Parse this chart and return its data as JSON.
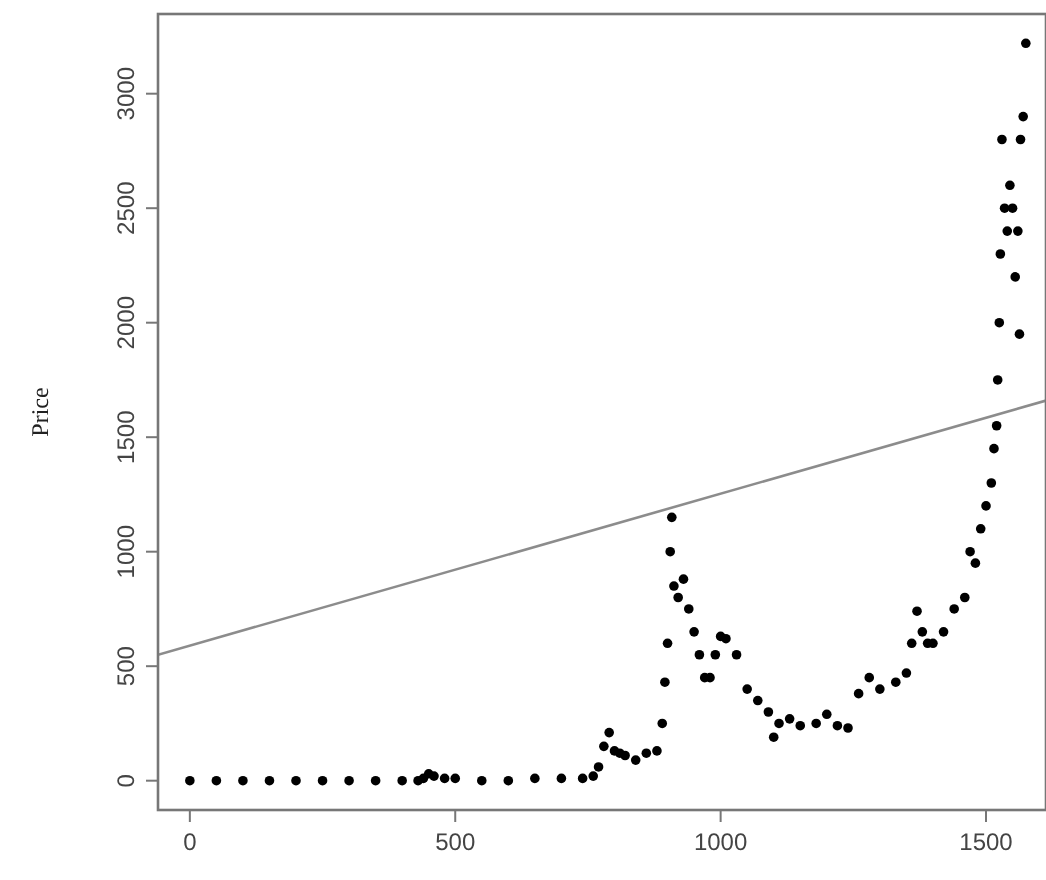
{
  "chart_data": {
    "type": "scatter",
    "ylabel": "Price",
    "xlim": [
      -60,
      1613
    ],
    "ylim": [
      -128,
      3348
    ],
    "xticks": [
      0,
      500,
      1000,
      1500
    ],
    "yticks": [
      0,
      500,
      1000,
      1500,
      2000,
      2500,
      3000
    ],
    "grid": false,
    "series": [
      {
        "color": "#000000",
        "marker": "circle",
        "x": [
          0,
          50,
          100,
          150,
          200,
          250,
          300,
          350,
          400,
          430,
          440,
          450,
          460,
          480,
          500,
          550,
          600,
          650,
          700,
          740,
          760,
          770,
          780,
          790,
          800,
          810,
          820,
          840,
          860,
          880,
          890,
          895,
          900,
          905,
          908,
          912,
          920,
          930,
          940,
          950,
          960,
          970,
          980,
          990,
          1000,
          1010,
          1030,
          1050,
          1070,
          1090,
          1100,
          1110,
          1130,
          1150,
          1180,
          1200,
          1220,
          1240,
          1260,
          1280,
          1300,
          1330,
          1350,
          1360,
          1370,
          1380,
          1390,
          1400,
          1420,
          1440,
          1460,
          1470,
          1480,
          1490,
          1500,
          1510,
          1515,
          1520,
          1522,
          1525,
          1527,
          1530,
          1535,
          1540,
          1545,
          1550,
          1555,
          1560,
          1563,
          1565,
          1570,
          1575
        ],
        "values": [
          0,
          0,
          0,
          0,
          0,
          0,
          0,
          0,
          0,
          0,
          10,
          30,
          20,
          10,
          10,
          0,
          0,
          10,
          10,
          10,
          20,
          60,
          150,
          210,
          130,
          120,
          110,
          90,
          120,
          130,
          250,
          430,
          600,
          1000,
          1150,
          850,
          800,
          880,
          750,
          650,
          550,
          450,
          450,
          550,
          630,
          620,
          550,
          400,
          350,
          300,
          190,
          250,
          270,
          240,
          250,
          290,
          240,
          230,
          380,
          450,
          400,
          430,
          470,
          600,
          740,
          650,
          600,
          600,
          650,
          750,
          800,
          1000,
          950,
          1100,
          1200,
          1300,
          1450,
          1550,
          1750,
          2000,
          2300,
          2800,
          2500,
          2400,
          2600,
          2500,
          2200,
          2400,
          1950,
          2800,
          2900,
          3220
        ]
      },
      {
        "type": "line",
        "color": "#8c8c8c",
        "marker": "none",
        "x": [
          -60,
          1613
        ],
        "values": [
          550,
          1660
        ]
      }
    ]
  }
}
